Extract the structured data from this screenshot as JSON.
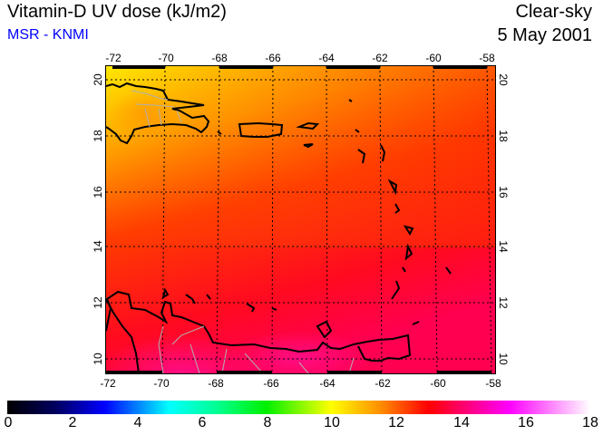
{
  "header": {
    "title": "Vitamin-D UV dose (kJ/m2)",
    "source": "MSR - KNMI",
    "condition": "Clear-sky",
    "date": "5 May 2001"
  },
  "map": {
    "lon_ticks": [
      "-72",
      "-70",
      "-68",
      "-66",
      "-64",
      "-62",
      "-60",
      "-58"
    ],
    "lat_ticks": [
      "20",
      "18",
      "16",
      "14",
      "12",
      "10"
    ],
    "lon_range": [
      -72,
      -58
    ],
    "lat_range": [
      9.5,
      20.5
    ]
  },
  "colorbar": {
    "labels": [
      "0",
      "2",
      "4",
      "6",
      "8",
      "10",
      "12",
      "14",
      "16",
      "18"
    ],
    "range": [
      0,
      18
    ],
    "stops": [
      {
        "v": 0,
        "c": "#000000"
      },
      {
        "v": 1.5,
        "c": "#000060"
      },
      {
        "v": 3,
        "c": "#0000ff"
      },
      {
        "v": 5,
        "c": "#00ffff"
      },
      {
        "v": 6.5,
        "c": "#00ff90"
      },
      {
        "v": 8,
        "c": "#00f000"
      },
      {
        "v": 10,
        "c": "#ffff00"
      },
      {
        "v": 11.5,
        "c": "#ff9000"
      },
      {
        "v": 13,
        "c": "#ff0000"
      },
      {
        "v": 15.5,
        "c": "#ff00ff"
      },
      {
        "v": 18,
        "c": "#ffffff"
      }
    ]
  }
}
